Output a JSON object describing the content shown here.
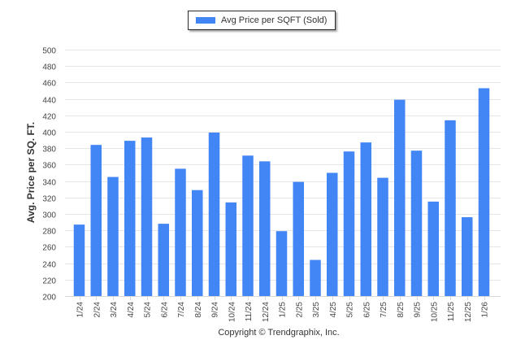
{
  "chart_data": {
    "type": "bar",
    "title": "",
    "xlabel": "",
    "ylabel": "Avg. Price per SQ. FT.",
    "ylim": [
      200,
      500
    ],
    "yticks": [
      200,
      220,
      240,
      260,
      280,
      300,
      320,
      340,
      360,
      380,
      400,
      420,
      440,
      460,
      480,
      500
    ],
    "grid": true,
    "legend_position": "top-center",
    "color": "#4285f4",
    "categories": [
      "1/24",
      "2/24",
      "3/24",
      "4/24",
      "5/24",
      "6/24",
      "7/24",
      "8/24",
      "9/24",
      "10/24",
      "11/24",
      "12/24",
      "1/25",
      "2/25",
      "3/25",
      "4/25",
      "5/25",
      "6/25",
      "7/25",
      "8/25",
      "9/25",
      "10/25",
      "11/25",
      "12/25",
      "1/26"
    ],
    "series": [
      {
        "name": "Avg Price per SQFT (Sold)",
        "values": [
          287,
          384,
          345,
          389,
          393,
          288,
          355,
          329,
          399,
          314,
          371,
          364,
          279,
          339,
          244,
          350,
          376,
          387,
          344,
          439,
          377,
          315,
          414,
          296,
          453
        ]
      }
    ]
  },
  "legend": {
    "label": "Avg Price per SQFT (Sold)"
  },
  "footer": {
    "copyright": "Copyright © Trendgraphix, Inc."
  }
}
